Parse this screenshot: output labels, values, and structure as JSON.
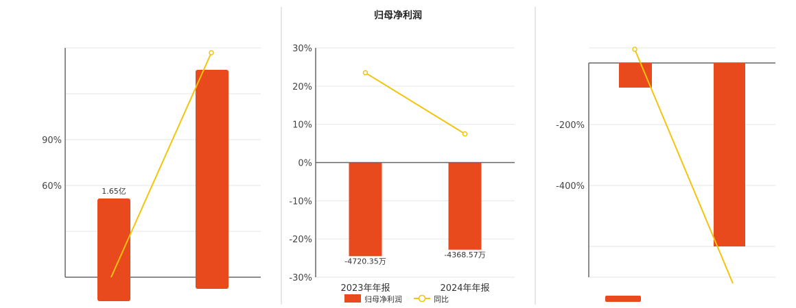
{
  "colors": {
    "bar": "#E8491D",
    "line": "#F2C40C",
    "grid": "#e6e6e6",
    "divider": "#cccccc"
  },
  "chart_data": [
    {
      "type": "bar",
      "panel": "left",
      "yticks": [
        "90%",
        "60%"
      ],
      "data_labels": [
        "1.65亿"
      ]
    },
    {
      "type": "bar",
      "panel": "center",
      "title": "归母净利润",
      "categories": [
        "2023年年报",
        "2024年年报"
      ],
      "yticks": [
        "30%",
        "20%",
        "10%",
        "0%",
        "-10%",
        "-20%",
        "-30%"
      ],
      "ylim": [
        -30,
        30
      ],
      "series": [
        {
          "name": "归母净利润",
          "type": "bar",
          "values": [
            -24.5,
            -22.8
          ],
          "data_labels": [
            "-4720.35万",
            "-4368.57万"
          ]
        },
        {
          "name": "同比",
          "type": "line",
          "values": [
            23.5,
            7.5
          ]
        }
      ],
      "legend": {
        "position": "bottom",
        "items": [
          "归母净利润",
          "同比"
        ]
      }
    },
    {
      "type": "bar",
      "panel": "right",
      "yticks": [
        "-200%",
        "-400%"
      ]
    }
  ]
}
